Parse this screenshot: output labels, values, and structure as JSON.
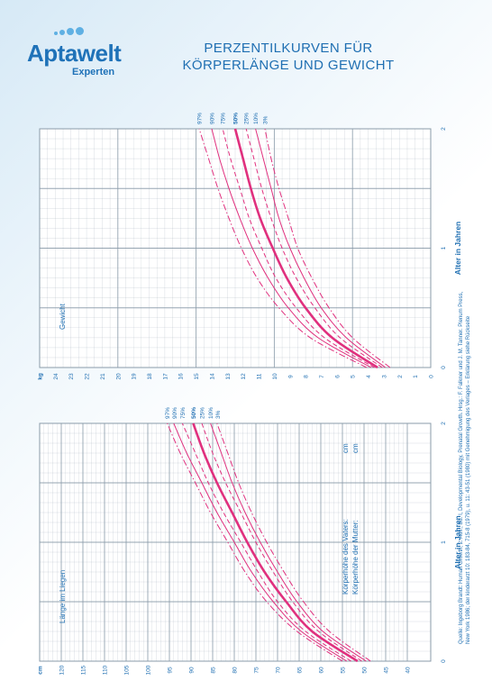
{
  "header": {
    "logo_name": "Aptawelt",
    "logo_sub": "Experten",
    "title_line1": "PERZENTILKURVEN FÜR",
    "title_line2": "KÖRPERLÄNGE UND GEWICHT"
  },
  "source_note": "Quelle: Ingeborg Brandt: Human Growth, 2. Aufl., Bd. I, Developmental Biology, Prenatal Growth. Hrsg.: F. Falkner und J. M. Tanner. Plenum Press, New York 1986; der kinderarzt 10: 183-84, 715-8 (1979), u. 11: 43-51 (1980) mit Genehmigung des Verlages – Erklärung siehe Rückseite",
  "colors": {
    "grid": "#8a9ba9",
    "curve": "#e0307e",
    "text": "#1f6fb2"
  },
  "chart_data": [
    {
      "type": "line",
      "panel_label": "Gewicht",
      "x_axis_label": "Alter in Jahren",
      "x_ticks": [
        "0",
        "1",
        "2"
      ],
      "xlim": [
        0,
        2
      ],
      "y_unit": "kg",
      "y_ticks": [
        "0",
        "1",
        "2",
        "3",
        "4",
        "5",
        "6",
        "7",
        "8",
        "9",
        "10",
        "11",
        "12",
        "13",
        "14",
        "15",
        "16",
        "17",
        "18",
        "19",
        "20",
        "21",
        "22",
        "23",
        "24"
      ],
      "ylim": [
        0,
        25
      ],
      "grid": true,
      "x": [
        0,
        0.25,
        0.5,
        0.75,
        1,
        1.25,
        1.5,
        1.75,
        2
      ],
      "series": [
        {
          "name": "97%",
          "style": "dashdot",
          "bold": false,
          "values": [
            4.1,
            7.7,
            9.7,
            11.1,
            12.1,
            12.9,
            13.6,
            14.2,
            14.8
          ]
        },
        {
          "name": "90%",
          "style": "solid",
          "bold": false,
          "values": [
            3.8,
            7.2,
            9.1,
            10.4,
            11.4,
            12.2,
            12.9,
            13.5,
            14.0
          ]
        },
        {
          "name": "75%",
          "style": "dashed",
          "bold": false,
          "values": [
            3.6,
            6.8,
            8.6,
            9.9,
            10.8,
            11.6,
            12.2,
            12.8,
            13.3
          ]
        },
        {
          "name": "50%",
          "style": "solid",
          "bold": true,
          "values": [
            3.4,
            6.3,
            8.0,
            9.2,
            10.1,
            10.9,
            11.5,
            12.0,
            12.5
          ]
        },
        {
          "name": "25%",
          "style": "dashed",
          "bold": false,
          "values": [
            3.1,
            5.8,
            7.4,
            8.6,
            9.5,
            10.2,
            10.8,
            11.3,
            11.8
          ]
        },
        {
          "name": "10%",
          "style": "solid",
          "bold": false,
          "values": [
            2.9,
            5.4,
            7.0,
            8.1,
            9.0,
            9.7,
            10.2,
            10.7,
            11.2
          ]
        },
        {
          "name": "3%",
          "style": "dashdot",
          "bold": false,
          "values": [
            2.6,
            5.0,
            6.5,
            7.6,
            8.5,
            9.1,
            9.7,
            10.2,
            10.6
          ]
        }
      ]
    },
    {
      "type": "line",
      "panel_label": "Länge im Liegen",
      "x_axis_label": "Alter in Jahren",
      "x_ticks": [
        "0",
        "1",
        "2"
      ],
      "xlim": [
        0,
        2
      ],
      "y_unit": "cm",
      "y_ticks": [
        "40",
        "45",
        "50",
        "55",
        "60",
        "65",
        "70",
        "75",
        "80",
        "85",
        "90",
        "95",
        "100",
        "105",
        "110",
        "115",
        "120"
      ],
      "ylim": [
        40,
        125
      ],
      "grid": true,
      "x": [
        0,
        0.25,
        0.5,
        0.75,
        1,
        1.25,
        1.5,
        1.75,
        2
      ],
      "series": [
        {
          "name": "97%",
          "style": "dashdot",
          "bold": false,
          "values": [
            55,
            65.5,
            72.5,
            77.5,
            81.5,
            85.5,
            89,
            92.5,
            95.5
          ]
        },
        {
          "name": "90%",
          "style": "solid",
          "bold": false,
          "values": [
            54,
            64.5,
            71,
            76,
            80,
            84,
            87.5,
            91,
            94
          ]
        },
        {
          "name": "75%",
          "style": "dashed",
          "bold": false,
          "values": [
            53,
            63.5,
            70,
            74.5,
            78.5,
            82.5,
            86,
            89,
            92
          ]
        },
        {
          "name": "50%",
          "style": "solid",
          "bold": true,
          "values": [
            51.5,
            62,
            68,
            73,
            77,
            80.5,
            84,
            87,
            89.5
          ]
        },
        {
          "name": "25%",
          "style": "dashed",
          "bold": false,
          "values": [
            50.5,
            60.5,
            66.5,
            71,
            75,
            78.5,
            82,
            85,
            87.5
          ]
        },
        {
          "name": "10%",
          "style": "solid",
          "bold": false,
          "values": [
            49.5,
            59.5,
            65.5,
            70,
            74,
            77.5,
            80.5,
            83,
            85.5
          ]
        },
        {
          "name": "3%",
          "style": "dashdot",
          "bold": false,
          "values": [
            48.5,
            58,
            64,
            68.5,
            72.5,
            76,
            79,
            81.5,
            84
          ]
        }
      ],
      "notes": [
        {
          "label": "Körperhöhe des Vaters:",
          "unit": "cm"
        },
        {
          "label": "Körperhöhe der Mutter:",
          "unit": "cm"
        }
      ]
    }
  ]
}
